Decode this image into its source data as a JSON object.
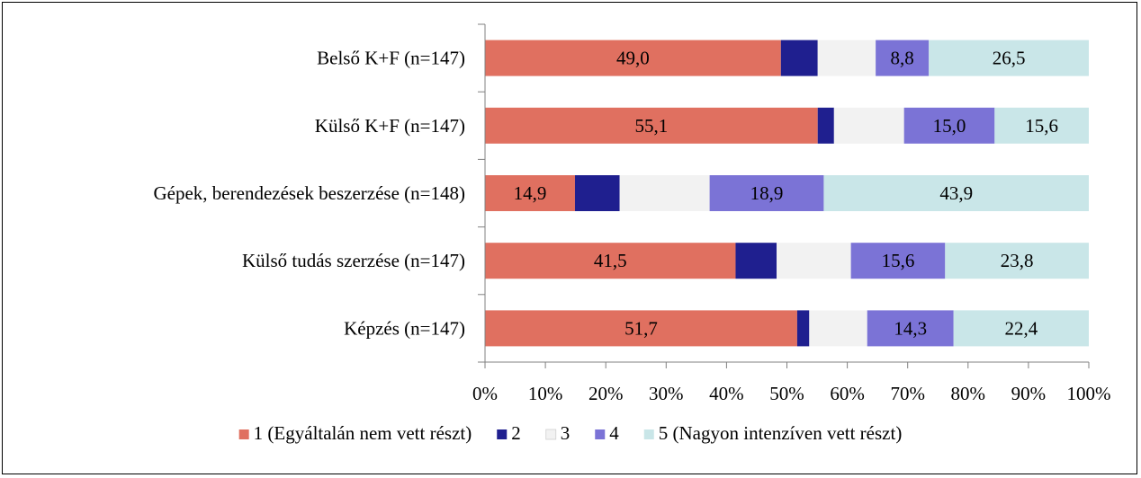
{
  "chart_data": {
    "type": "bar",
    "orientation": "horizontal",
    "stacked": "percent",
    "categories": [
      "Belső K+F (n=147)",
      "Külső K+F (n=147)",
      "Gépek, berendezések beszerzése (n=148)",
      "Külső tudás szerzése (n=147)",
      "Képzés (n=147)"
    ],
    "series": [
      {
        "name": "1 (Egyáltalán nem vett részt)",
        "color": "#E07060",
        "values": [
          49.0,
          55.1,
          14.9,
          41.5,
          51.7
        ],
        "labels": [
          "49,0",
          "55,1",
          "14,9",
          "41,5",
          "51,7"
        ]
      },
      {
        "name": "2",
        "color": "#1F1F8F",
        "values": [
          6.1,
          2.7,
          7.4,
          6.8,
          2.0
        ],
        "labels": [
          "",
          "",
          "",
          "",
          ""
        ]
      },
      {
        "name": "3",
        "color": "#F2F2F2",
        "values": [
          9.6,
          11.6,
          14.9,
          12.3,
          9.6
        ],
        "labels": [
          "",
          "",
          "",
          "",
          ""
        ]
      },
      {
        "name": "4",
        "color": "#7B73D6",
        "values": [
          8.8,
          15.0,
          18.9,
          15.6,
          14.3
        ],
        "labels": [
          "8,8",
          "15,0",
          "18,9",
          "15,6",
          "14,3"
        ]
      },
      {
        "name": "5 (Nagyon intenzíven vett részt)",
        "color": "#C9E6E8",
        "values": [
          26.5,
          15.6,
          43.9,
          23.8,
          22.4
        ],
        "labels": [
          "26,5",
          "15,6",
          "43,9",
          "23,8",
          "22,4"
        ]
      }
    ],
    "xlim": [
      0,
      100
    ],
    "xticks": [
      "0%",
      "10%",
      "20%",
      "30%",
      "40%",
      "50%",
      "60%",
      "70%",
      "80%",
      "90%",
      "100%"
    ],
    "legend_position": "bottom",
    "grid": false
  }
}
